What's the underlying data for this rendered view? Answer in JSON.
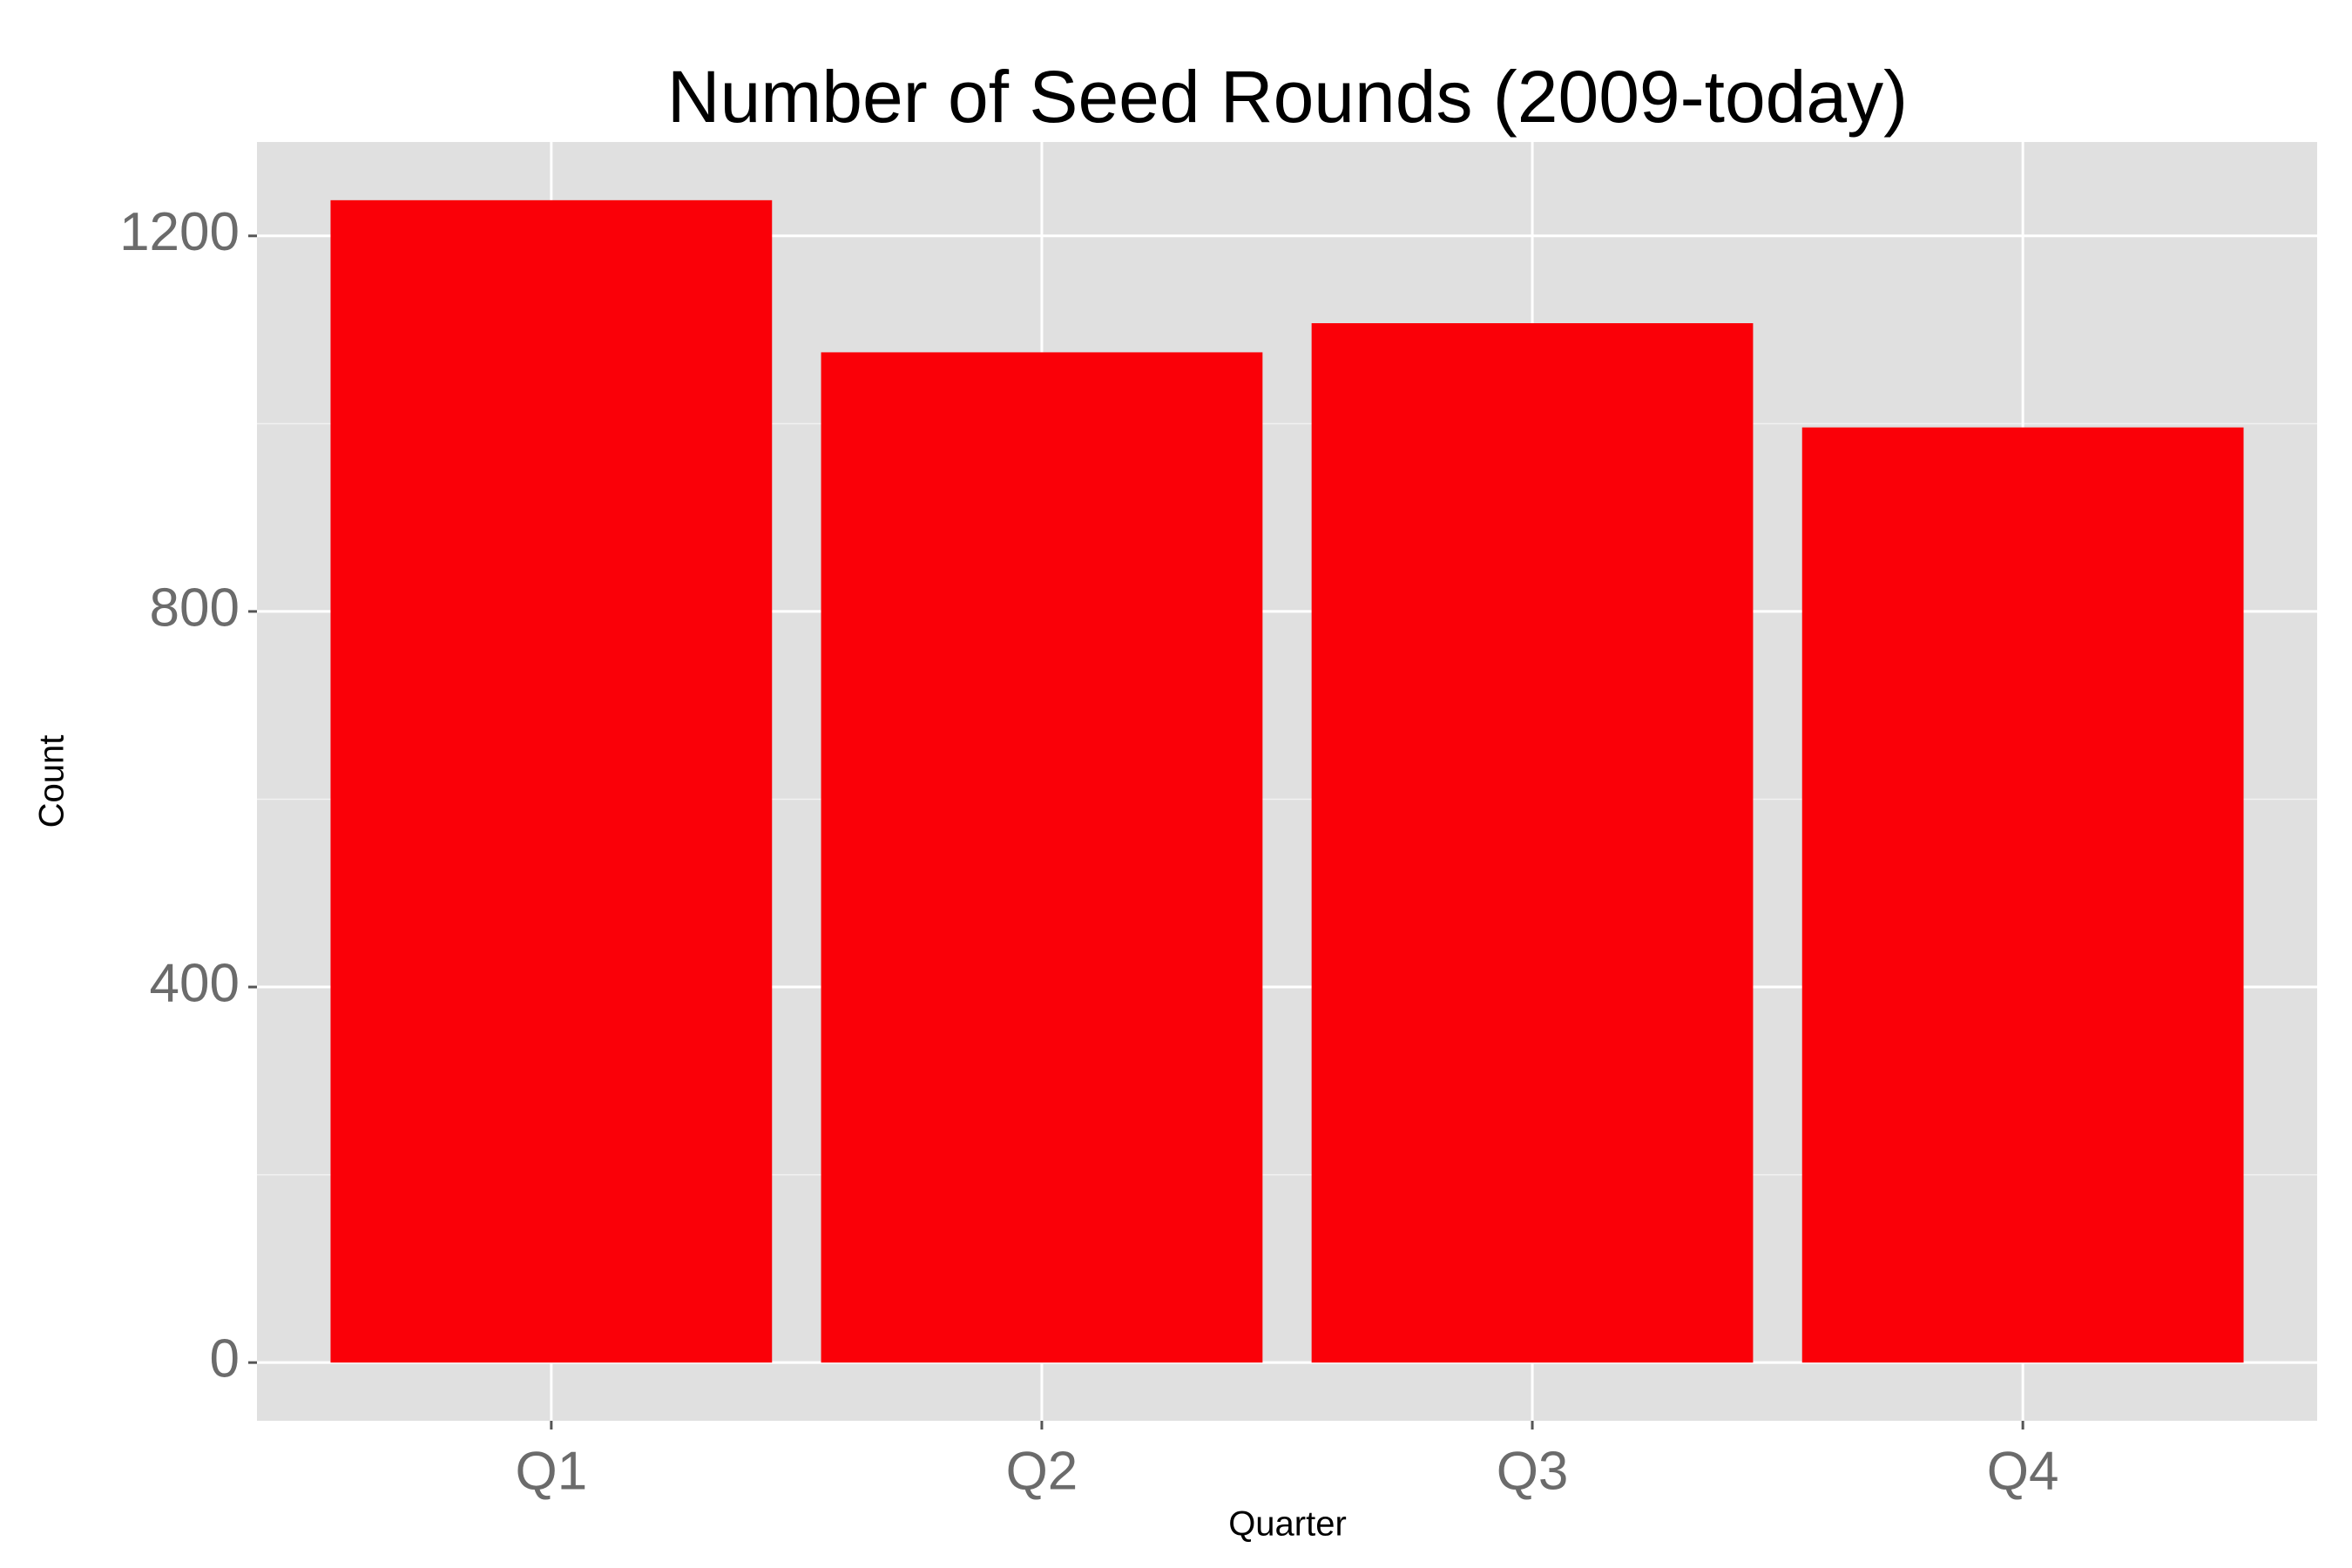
{
  "chart_data": {
    "type": "bar",
    "title": "Number of Seed Rounds (2009-today)",
    "x_label": "Quarter",
    "y_label": "Count",
    "categories": [
      "Q1",
      "Q2",
      "Q3",
      "Q4"
    ],
    "values": [
      1238,
      1076,
      1107,
      996
    ],
    "color": "#fa0008",
    "ylim": [
      -62,
      1300
    ],
    "yticks": [
      0,
      400,
      800,
      1200
    ],
    "minor_gridlines": [
      200,
      600,
      1000
    ],
    "grid": true
  }
}
